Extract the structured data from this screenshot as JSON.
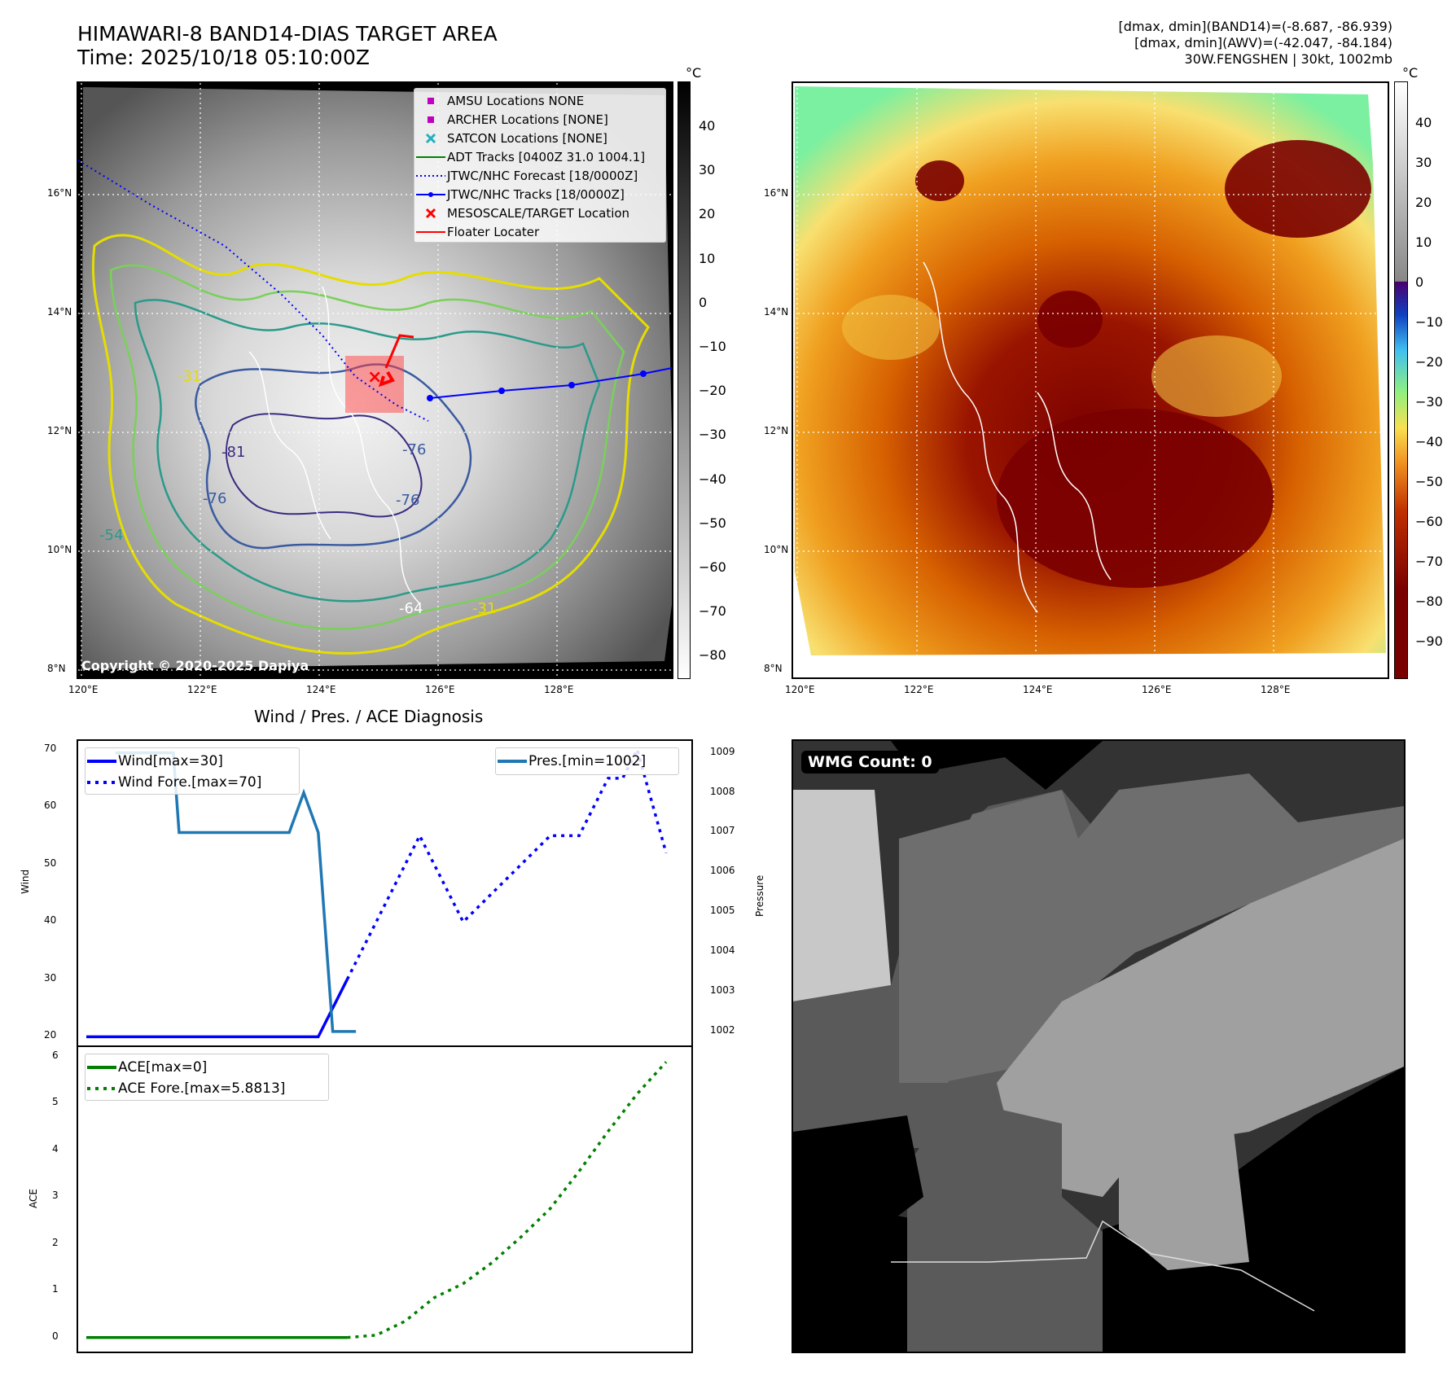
{
  "header": {
    "title_line1": "HIMAWARI-8 BAND14-DIAS TARGET AREA",
    "title_line2": "Time: 2025/10/18 05:10:00Z",
    "info_line1": "[dmax, dmin](BAND14)=(-8.687, -86.939)",
    "info_line2": "[dmax, dmin](AWV)=(-42.047, -84.184)",
    "info_line3": "30W.FENGSHEN | 30kt, 1002mb"
  },
  "map": {
    "lon_ticks": [
      "120°E",
      "122°E",
      "124°E",
      "126°E",
      "128°E"
    ],
    "lat_ticks": [
      "16°N",
      "14°N",
      "12°N",
      "10°N",
      "8°N"
    ],
    "copyright": "Copyright © 2020-2025 Dapiya",
    "contour_labels": [
      "-76",
      "-76",
      "-81",
      "-76",
      "-54",
      "-31",
      "-64",
      "-31"
    ]
  },
  "legend_map": {
    "items": [
      {
        "label": "AMSU Locations NONE",
        "color": "#c000c0",
        "kind": "square"
      },
      {
        "label": "ARCHER Locations [NONE]",
        "color": "#c000c0",
        "kind": "square"
      },
      {
        "label": "SATCON Locations [NONE]",
        "color": "#20b0c0",
        "kind": "x"
      },
      {
        "label": "ADT Tracks [0400Z 31.0 1004.1]",
        "color": "#008000",
        "kind": "line"
      },
      {
        "label": "JTWC/NHC Forecast [18/0000Z]",
        "color": "#0000ff",
        "kind": "dotted"
      },
      {
        "label": "JTWC/NHC Tracks [18/0000Z]",
        "color": "#0000ff",
        "kind": "linedot"
      },
      {
        "label": "MESOSCALE/TARGET Location",
        "color": "#ff0000",
        "kind": "x"
      },
      {
        "label": "Floater Locater",
        "color": "#ff0000",
        "kind": "line"
      }
    ]
  },
  "colorbar1": {
    "unit": "°C",
    "ticks": [
      "40",
      "30",
      "20",
      "10",
      "0",
      "−10",
      "−20",
      "−30",
      "−40",
      "−50",
      "−60",
      "−70",
      "−80"
    ]
  },
  "colorbar2": {
    "unit": "°C",
    "ticks": [
      "40",
      "30",
      "20",
      "10",
      "0",
      "−10",
      "−20",
      "−30",
      "−40",
      "−50",
      "−60",
      "−70",
      "−80",
      "−90"
    ]
  },
  "diag": {
    "title": "Wind / Pres. / ACE Diagnosis",
    "wind_ylabel": "Wind",
    "pres_ylabel": "Pressure",
    "ace_ylabel": "ACE",
    "wind_ticks": [
      "70",
      "60",
      "50",
      "40",
      "30",
      "20"
    ],
    "pres_ticks": [
      "1009",
      "1008",
      "1007",
      "1006",
      "1005",
      "1004",
      "1003",
      "1002"
    ],
    "ace_ticks": [
      "6",
      "5",
      "4",
      "3",
      "2",
      "1",
      "0"
    ],
    "legend_wind": [
      "Wind[max=30]",
      "Wind Fore.[max=70]"
    ],
    "legend_pres": "Pres.[min=1002]",
    "legend_ace": [
      "ACE[max=0]",
      "ACE Fore.[max=5.8813]"
    ]
  },
  "chart_data": [
    {
      "type": "line",
      "name": "wind-pressure",
      "ylim": [
        18.5,
        71.5
      ],
      "y2lim": [
        1001.65,
        1009.3
      ],
      "series": [
        {
          "name": "Wind[max=30]",
          "color": "#0000ff",
          "style": "solid",
          "x": [
            0,
            1,
            2,
            3,
            4,
            5,
            6,
            7,
            8,
            8.5,
            9
          ],
          "values": [
            20,
            20,
            20,
            20,
            20,
            20,
            20,
            20,
            20,
            25,
            30
          ]
        },
        {
          "name": "Wind Fore.[max=70]",
          "color": "#0000ff",
          "style": "dotted",
          "x": [
            9,
            10,
            11,
            11.5,
            12,
            13,
            14,
            15,
            16,
            17,
            17.5,
            18,
            18.5,
            19,
            20
          ],
          "values": [
            30,
            40,
            50,
            55,
            50,
            40,
            45,
            50,
            55,
            55,
            60,
            65,
            65,
            70,
            52
          ]
        },
        {
          "name": "Pres.[min=1002]",
          "color": "#1f77b4",
          "style": "solid",
          "axis": "right",
          "x": [
            1,
            3,
            3.2,
            7,
            7.5,
            8,
            8.5,
            9,
            9.3
          ],
          "values": [
            1009,
            1009,
            1007,
            1007,
            1008,
            1007,
            1002,
            1002,
            1002
          ]
        }
      ]
    },
    {
      "type": "line",
      "name": "ace",
      "ylim": [
        -0.3,
        6.2
      ],
      "series": [
        {
          "name": "ACE[max=0]",
          "color": "#008000",
          "style": "solid",
          "x": [
            0,
            9
          ],
          "values": [
            0,
            0
          ]
        },
        {
          "name": "ACE Fore.[max=5.8813]",
          "color": "#008000",
          "style": "dotted",
          "x": [
            9,
            10,
            11,
            12,
            13,
            14,
            15,
            16,
            17,
            18,
            19,
            20
          ],
          "values": [
            0,
            0.05,
            0.35,
            0.85,
            1.15,
            1.6,
            2.15,
            2.75,
            3.55,
            4.4,
            5.2,
            5.8813
          ]
        }
      ]
    }
  ],
  "wmg": {
    "label": "WMG Count: 0"
  }
}
